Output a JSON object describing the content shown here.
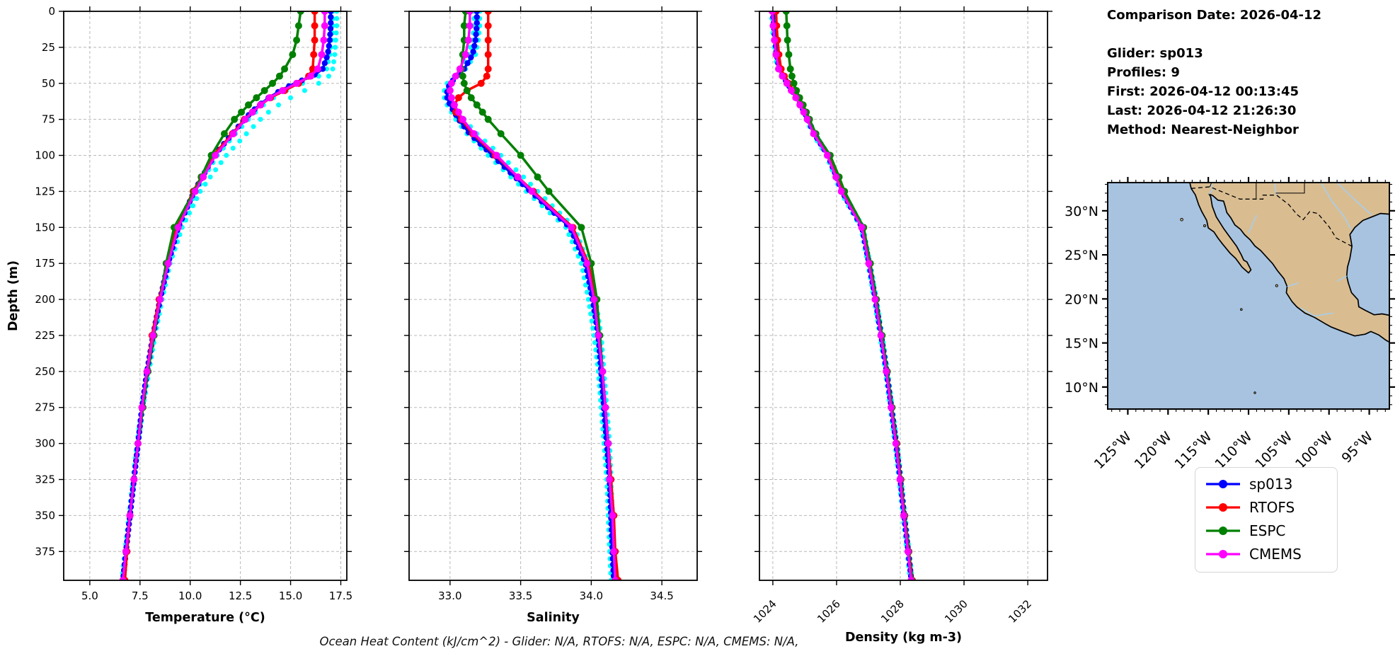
{
  "info": {
    "comparison_date": "Comparison Date: 2026-04-12",
    "glider": "Glider: sp013",
    "profiles": "Profiles: 9",
    "first": "First: 2026-04-12 00:13:45",
    "last": "Last: 2026-04-12 21:26:30",
    "method": "Method: Nearest-Neighbor"
  },
  "caption": "Ocean Heat Content (kJ/cm^2) - Glider: N/A,  RTOFS: N/A,  ESPC: N/A,  CMEMS: N/A,",
  "colors": {
    "sp013": "#0000ff",
    "rtofs": "#ff0000",
    "espc": "#008000",
    "cmems": "#ff00ff",
    "glider_raw": "#00ffff",
    "grid": "#b8b8b8",
    "land": "#d9bd91",
    "ocean": "#a7c3e0",
    "river": "#a9cdea"
  },
  "legend": [
    {
      "label": "sp013",
      "color": "#0000ff"
    },
    {
      "label": "RTOFS",
      "color": "#ff0000"
    },
    {
      "label": "ESPC",
      "color": "#008000"
    },
    {
      "label": "CMEMS",
      "color": "#ff00ff"
    }
  ],
  "depths": [
    0,
    10,
    20,
    30,
    40,
    45,
    50,
    55,
    60,
    65,
    70,
    75,
    85,
    100,
    115,
    125,
    150,
    175,
    200,
    225,
    250,
    275,
    300,
    325,
    350,
    375,
    395
  ],
  "chart_data": [
    {
      "type": "line",
      "xlabel": "Temperature (°C)",
      "ylabel": "Depth (m)",
      "xlim": [
        3.7,
        17.8
      ],
      "ylim": [
        0,
        395
      ],
      "grid": true,
      "xticks": {
        "values": [
          5.0,
          7.5,
          10.0,
          12.5,
          15.0,
          17.5
        ],
        "labels": [
          "5.0",
          "7.5",
          "10.0",
          "12.5",
          "15.0",
          "17.5"
        ]
      },
      "yticks": {
        "values": [
          0,
          25,
          50,
          75,
          100,
          125,
          150,
          175,
          200,
          225,
          250,
          275,
          300,
          325,
          350,
          375
        ],
        "labels": [
          "0",
          "25",
          "50",
          "75",
          "100",
          "125",
          "150",
          "175",
          "200",
          "225",
          "250",
          "275",
          "300",
          "325",
          "350",
          "375"
        ]
      },
      "scatter": [
        {
          "name": "glider-profile-a",
          "color": "#00ffff",
          "values": [
            17.1,
            17.1,
            17.05,
            16.95,
            16.8,
            16.4,
            15.6,
            14.8,
            14.15,
            13.65,
            13.25,
            12.9,
            12.25,
            11.35,
            10.7,
            10.3,
            9.45,
            8.95,
            8.55,
            8.2,
            7.9,
            7.6,
            7.35,
            7.15,
            6.95,
            6.75,
            6.6
          ]
        },
        {
          "name": "glider-profile-b",
          "color": "#00ffff",
          "values": [
            17.3,
            17.3,
            17.25,
            17.2,
            17.1,
            16.9,
            16.4,
            15.7,
            15.0,
            14.4,
            13.9,
            13.5,
            12.8,
            11.8,
            11.0,
            10.5,
            9.6,
            9.0,
            8.6,
            8.25,
            7.95,
            7.65,
            7.4,
            7.2,
            7.0,
            6.8,
            6.6
          ]
        }
      ],
      "series": [
        {
          "name": "sp013",
          "color": "#0000ff",
          "marker": "dense",
          "values": [
            17.0,
            17.0,
            16.95,
            16.85,
            16.6,
            16.1,
            15.2,
            14.5,
            13.9,
            13.45,
            13.05,
            12.7,
            12.1,
            11.2,
            10.6,
            10.2,
            9.4,
            8.9,
            8.5,
            8.15,
            7.85,
            7.6,
            7.4,
            7.2,
            7.0,
            6.8,
            6.65
          ]
        },
        {
          "name": "RTOFS",
          "color": "#ff0000",
          "marker": "points",
          "values": [
            16.2,
            16.2,
            16.2,
            16.15,
            16.1,
            15.9,
            15.4,
            14.7,
            14.0,
            13.5,
            13.1,
            12.7,
            12.1,
            11.15,
            10.55,
            10.15,
            9.3,
            8.85,
            8.45,
            8.1,
            7.85,
            7.6,
            7.4,
            7.2,
            7.0,
            6.85,
            6.75
          ]
        },
        {
          "name": "ESPC",
          "color": "#008000",
          "marker": "points",
          "values": [
            15.5,
            15.4,
            15.3,
            15.1,
            14.7,
            14.45,
            14.1,
            13.7,
            13.3,
            12.9,
            12.55,
            12.2,
            11.7,
            11.05,
            10.55,
            10.2,
            9.2,
            8.8,
            8.5,
            8.2,
            7.9,
            7.65,
            7.4,
            7.2,
            7.0,
            6.8,
            6.65
          ]
        },
        {
          "name": "CMEMS",
          "color": "#ff00ff",
          "marker": "points",
          "values": [
            16.7,
            16.7,
            16.65,
            16.55,
            16.35,
            16.0,
            15.3,
            14.6,
            13.95,
            13.5,
            13.1,
            12.75,
            12.15,
            11.25,
            10.65,
            10.25,
            9.4,
            8.9,
            8.5,
            8.15,
            7.85,
            7.6,
            7.4,
            7.2,
            7.0,
            6.8,
            6.65
          ]
        }
      ]
    },
    {
      "type": "line",
      "xlabel": "Salinity",
      "ylabel": "",
      "xlim": [
        32.71,
        34.75
      ],
      "ylim": [
        0,
        395
      ],
      "grid": true,
      "xticks": {
        "values": [
          33.0,
          33.5,
          34.0,
          34.5
        ],
        "labels": [
          "33.0",
          "33.5",
          "34.0",
          "34.5"
        ]
      },
      "yticks": {
        "values": [
          0,
          25,
          50,
          75,
          100,
          125,
          150,
          175,
          200,
          225,
          250,
          275,
          300,
          325,
          350,
          375
        ],
        "labels": [
          "0",
          "25",
          "50",
          "75",
          "100",
          "125",
          "150",
          "175",
          "200",
          "225",
          "250",
          "275",
          "300",
          "325",
          "350",
          "375"
        ]
      },
      "scatter": [
        {
          "name": "glider-profile-a",
          "color": "#00ffff",
          "values": [
            33.21,
            33.21,
            33.2,
            33.18,
            33.11,
            33.05,
            32.99,
            32.96,
            32.96,
            32.98,
            33.01,
            33.04,
            33.12,
            33.27,
            33.43,
            33.54,
            33.82,
            33.93,
            33.98,
            34.02,
            34.05,
            34.07,
            34.09,
            34.11,
            34.12,
            34.13,
            34.14
          ]
        },
        {
          "name": "glider-profile-b",
          "color": "#00ffff",
          "values": [
            33.17,
            33.17,
            33.16,
            33.13,
            33.08,
            33.03,
            32.98,
            32.97,
            32.99,
            33.02,
            33.06,
            33.1,
            33.19,
            33.36,
            33.52,
            33.62,
            33.88,
            33.98,
            34.03,
            34.07,
            34.09,
            34.11,
            34.13,
            34.14,
            34.15,
            34.16,
            34.17
          ]
        }
      ],
      "series": [
        {
          "name": "sp013",
          "color": "#0000ff",
          "marker": "dense",
          "values": [
            33.19,
            33.19,
            33.18,
            33.16,
            33.1,
            33.05,
            33.0,
            32.98,
            32.98,
            33.0,
            33.03,
            33.06,
            33.14,
            33.3,
            33.46,
            33.57,
            33.85,
            33.96,
            34.01,
            34.05,
            34.07,
            34.09,
            34.11,
            34.13,
            34.14,
            34.15,
            34.16
          ]
        },
        {
          "name": "RTOFS",
          "color": "#ff0000",
          "marker": "points",
          "values": [
            33.27,
            33.27,
            33.27,
            33.27,
            33.27,
            33.26,
            33.22,
            33.12,
            33.06,
            33.03,
            33.04,
            33.08,
            33.16,
            33.32,
            33.48,
            33.59,
            33.87,
            33.98,
            34.03,
            34.06,
            34.08,
            34.1,
            34.12,
            34.14,
            34.16,
            34.17,
            34.19
          ]
        },
        {
          "name": "ESPC",
          "color": "#008000",
          "marker": "points",
          "values": [
            33.11,
            33.1,
            33.1,
            33.09,
            33.08,
            33.09,
            33.1,
            33.12,
            33.15,
            33.19,
            33.23,
            33.27,
            33.36,
            33.5,
            33.62,
            33.7,
            33.93,
            34.0,
            34.04,
            34.06,
            34.08,
            34.1,
            34.12,
            34.13,
            34.15,
            34.16,
            34.17
          ]
        },
        {
          "name": "CMEMS",
          "color": "#ff00ff",
          "marker": "points",
          "values": [
            33.14,
            33.14,
            33.13,
            33.11,
            33.07,
            33.04,
            33.01,
            33.0,
            33.01,
            33.03,
            33.06,
            33.09,
            33.17,
            33.33,
            33.48,
            33.58,
            33.86,
            33.97,
            34.02,
            34.05,
            34.08,
            34.1,
            34.12,
            34.13,
            34.15,
            34.16,
            34.17
          ]
        }
      ]
    },
    {
      "type": "line",
      "xlabel": "Density (kg m-3)",
      "ylabel": "",
      "xlim": [
        1023.58,
        1032.62
      ],
      "ylim": [
        0,
        395
      ],
      "grid": true,
      "xticks": {
        "values": [
          1024,
          1026,
          1028,
          1030,
          1032
        ],
        "labels": [
          "1024",
          "1026",
          "1028",
          "1030",
          "1032"
        ]
      },
      "yticks": {
        "values": [
          0,
          25,
          50,
          75,
          100,
          125,
          150,
          175,
          200,
          225,
          250,
          275,
          300,
          325,
          350,
          375
        ],
        "labels": [
          "0",
          "25",
          "50",
          "75",
          "100",
          "125",
          "150",
          "175",
          "200",
          "225",
          "250",
          "275",
          "300",
          "325",
          "350",
          "375"
        ]
      },
      "scatter": [
        {
          "name": "glider-profile-a",
          "color": "#00ffff",
          "values": [
            1023.95,
            1023.98,
            1024.02,
            1024.07,
            1024.15,
            1024.27,
            1024.41,
            1024.55,
            1024.69,
            1024.82,
            1024.94,
            1025.05,
            1025.25,
            1025.68,
            1025.95,
            1026.12,
            1026.76,
            1026.98,
            1027.18,
            1027.36,
            1027.53,
            1027.68,
            1027.83,
            1027.96,
            1028.08,
            1028.21,
            1028.31
          ]
        },
        {
          "name": "glider-profile-b",
          "color": "#00ffff",
          "values": [
            1024.02,
            1024.05,
            1024.09,
            1024.14,
            1024.22,
            1024.34,
            1024.48,
            1024.62,
            1024.76,
            1024.89,
            1025.01,
            1025.12,
            1025.32,
            1025.76,
            1026.03,
            1026.2,
            1026.83,
            1027.05,
            1027.25,
            1027.43,
            1027.6,
            1027.75,
            1027.9,
            1028.03,
            1028.15,
            1028.28,
            1028.38
          ]
        }
      ],
      "series": [
        {
          "name": "sp013",
          "color": "#0000ff",
          "marker": "dense",
          "values": [
            1024.0,
            1024.03,
            1024.07,
            1024.12,
            1024.2,
            1024.32,
            1024.46,
            1024.6,
            1024.74,
            1024.87,
            1024.99,
            1025.1,
            1025.3,
            1025.73,
            1026.0,
            1026.17,
            1026.8,
            1027.02,
            1027.22,
            1027.4,
            1027.57,
            1027.72,
            1027.87,
            1028.0,
            1028.12,
            1028.25,
            1028.35
          ]
        },
        {
          "name": "RTOFS",
          "color": "#ff0000",
          "marker": "points",
          "values": [
            1024.1,
            1024.12,
            1024.15,
            1024.19,
            1024.26,
            1024.36,
            1024.49,
            1024.63,
            1024.77,
            1024.89,
            1025.01,
            1025.12,
            1025.32,
            1025.75,
            1026.02,
            1026.19,
            1026.82,
            1027.04,
            1027.24,
            1027.42,
            1027.59,
            1027.74,
            1027.89,
            1028.02,
            1028.14,
            1028.27,
            1028.38
          ]
        },
        {
          "name": "ESPC",
          "color": "#008000",
          "marker": "points",
          "values": [
            1024.42,
            1024.44,
            1024.46,
            1024.5,
            1024.55,
            1024.6,
            1024.66,
            1024.74,
            1024.84,
            1024.95,
            1025.05,
            1025.15,
            1025.35,
            1025.8,
            1026.08,
            1026.25,
            1026.85,
            1027.06,
            1027.25,
            1027.43,
            1027.59,
            1027.74,
            1027.88,
            1028.01,
            1028.13,
            1028.26,
            1028.36
          ]
        },
        {
          "name": "CMEMS",
          "color": "#ff00ff",
          "marker": "points",
          "values": [
            1023.98,
            1024.01,
            1024.05,
            1024.1,
            1024.18,
            1024.3,
            1024.44,
            1024.58,
            1024.72,
            1024.85,
            1024.97,
            1025.08,
            1025.28,
            1025.71,
            1025.98,
            1026.15,
            1026.79,
            1027.01,
            1027.21,
            1027.39,
            1027.56,
            1027.71,
            1027.86,
            1027.99,
            1028.11,
            1028.24,
            1028.34
          ]
        }
      ]
    }
  ],
  "map": {
    "extent": {
      "lon_min": -127.5,
      "lon_max": -92.5,
      "lat_min": 7.5,
      "lat_max": 33.2
    },
    "lat_ticks": [
      {
        "value": 10,
        "label": "10°N"
      },
      {
        "value": 15,
        "label": "15°N"
      },
      {
        "value": 20,
        "label": "20°N"
      },
      {
        "value": 25,
        "label": "25°N"
      },
      {
        "value": 30,
        "label": "30°N"
      }
    ],
    "lon_ticks": [
      {
        "value": -125,
        "label": "125°W"
      },
      {
        "value": -120,
        "label": "120°W"
      },
      {
        "value": -115,
        "label": "115°W"
      },
      {
        "value": -110,
        "label": "110°W"
      },
      {
        "value": -105,
        "label": "105°W"
      },
      {
        "value": -100,
        "label": "100°W"
      },
      {
        "value": -95,
        "label": "95°W"
      }
    ]
  }
}
